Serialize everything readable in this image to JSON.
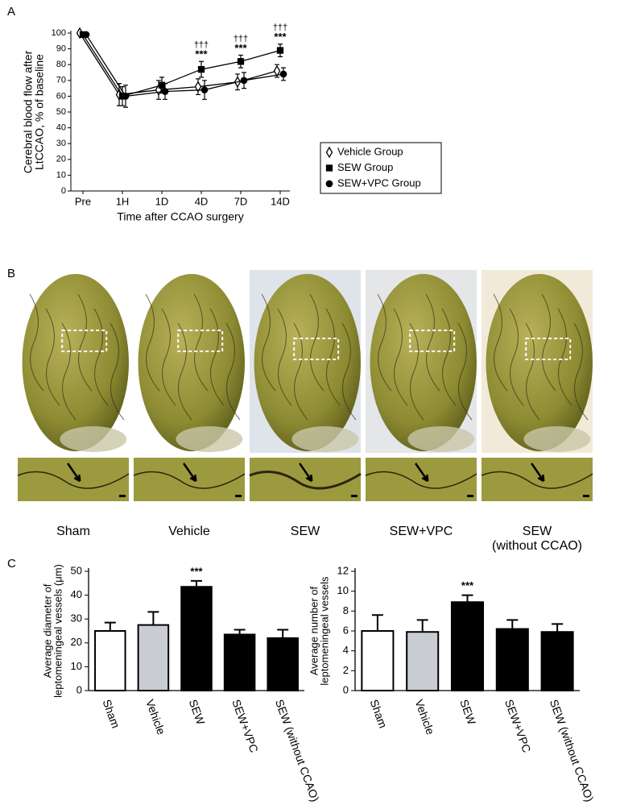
{
  "panel_labels": [
    "A",
    "B",
    "C"
  ],
  "photos": {
    "labels": [
      [
        "Sham"
      ],
      [
        "Vehicle"
      ],
      [
        "SEW"
      ],
      [
        "SEW+VPC"
      ],
      [
        "SEW",
        "(without CCAO)"
      ]
    ]
  },
  "chart_data": [
    {
      "type": "line",
      "ylabel": [
        "Cerebral blood flow after",
        "LtCCAO, % of baseline"
      ],
      "xlabel": "Time after CCAO surgery",
      "categories": [
        "Pre",
        "1H",
        "1D",
        "4D",
        "7D",
        "14D"
      ],
      "series": [
        {
          "name": "Vehicle Group",
          "color": "#000000",
          "marker": "diamond",
          "filled": false,
          "values": [
            100,
            61,
            64,
            66,
            69,
            76
          ],
          "errors": [
            1,
            7,
            6,
            5,
            5,
            4
          ]
        },
        {
          "name": "SEW Group",
          "color": "#000000",
          "marker": "square",
          "filled": true,
          "values": [
            99,
            60,
            67,
            77,
            82,
            89
          ],
          "errors": [
            1,
            6,
            5,
            5,
            4,
            4
          ]
        },
        {
          "name": "SEW+VPC Group",
          "color": "#000000",
          "marker": "circle",
          "filled": true,
          "values": [
            99,
            60,
            63,
            64,
            70,
            74
          ],
          "errors": [
            1,
            7,
            5,
            6,
            5,
            4
          ]
        }
      ],
      "stars": [
        null,
        null,
        null,
        "***",
        "***",
        "***"
      ],
      "daggers": [
        null,
        null,
        null,
        "†††",
        "†††",
        "†††"
      ],
      "ylim": [
        0,
        100
      ],
      "yticks": [
        0,
        10,
        20,
        30,
        40,
        50,
        60,
        70,
        80,
        90,
        100
      ],
      "legend": "right"
    },
    {
      "type": "bar",
      "ylabel": [
        "Average diameter of",
        "leptomeningeal vessels (μm)"
      ],
      "categories": [
        "Sham",
        "Vehicle",
        "SEW",
        "SEW+VPC",
        "SEW (without CCAO)"
      ],
      "values": [
        25,
        27.5,
        43.5,
        23.5,
        22
      ],
      "errors": [
        3.5,
        5.5,
        2.5,
        2,
        3.5
      ],
      "colors": [
        "#ffffff",
        "#c9ccd3",
        "#000000",
        "#000000",
        "#000000"
      ],
      "stars": [
        null,
        null,
        "***",
        null,
        null
      ],
      "ylim": [
        0,
        50
      ],
      "yticks": [
        0,
        10,
        20,
        30,
        40,
        50
      ]
    },
    {
      "type": "bar",
      "ylabel": [
        "Average number of",
        "leptomeningeal vessels"
      ],
      "categories": [
        "Sham",
        "Vehicle",
        "SEW",
        "SEW+VPC",
        "SEW (without CCAO)"
      ],
      "values": [
        6,
        5.9,
        8.9,
        6.2,
        5.9
      ],
      "errors": [
        1.6,
        1.2,
        0.7,
        0.9,
        0.8
      ],
      "colors": [
        "#ffffff",
        "#c9ccd3",
        "#000000",
        "#000000",
        "#000000"
      ],
      "stars": [
        null,
        null,
        "***",
        null,
        null
      ],
      "ylim": [
        0,
        12
      ],
      "yticks": [
        0,
        2,
        4,
        6,
        8,
        10,
        12
      ]
    }
  ]
}
